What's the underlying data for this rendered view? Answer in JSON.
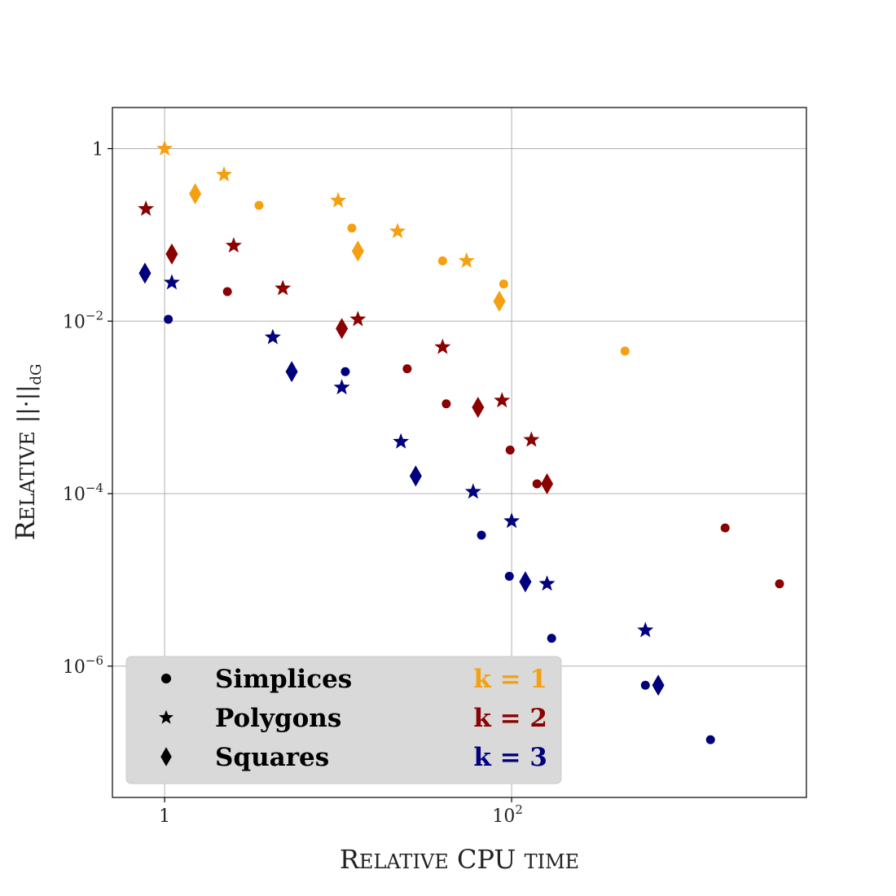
{
  "chart_data": {
    "type": "scatter",
    "title": "",
    "xlabel": "Relative CPU time",
    "ylabel": "Relative ||·||dG",
    "x_scale": "log",
    "y_scale": "log",
    "xlim": [
      0.5,
      5000
    ],
    "ylim": [
      3e-08,
      3
    ],
    "xticks": [
      {
        "value": 1,
        "label": "1",
        "sup": ""
      },
      {
        "value": 100,
        "label": "10",
        "sup": "2"
      }
    ],
    "yticks": [
      {
        "value": 1,
        "label": "1",
        "sup": ""
      },
      {
        "value": 0.01,
        "label": "10",
        "sup": "−2"
      },
      {
        "value": 0.0001,
        "label": "10",
        "sup": "−4"
      },
      {
        "value": 1e-06,
        "label": "10",
        "sup": "−6"
      }
    ],
    "grid": true,
    "legend_position": "bottom-left",
    "colors": {
      "k1": "#f5a010",
      "k2": "#8b0000",
      "k3": "#00007f"
    },
    "legend": {
      "shapes": [
        {
          "marker": "circle",
          "label": "Simplices"
        },
        {
          "marker": "star",
          "label": "Polygons"
        },
        {
          "marker": "diamond",
          "label": "Squares"
        }
      ],
      "orders": [
        {
          "label": "k = 1",
          "color": "#f5a010"
        },
        {
          "label": "k = 2",
          "color": "#8b0000"
        },
        {
          "label": "k = 3",
          "color": "#00007f"
        }
      ]
    },
    "series": [
      {
        "shape": "Simplices",
        "order": "k = 1",
        "marker": "circle",
        "color": "#f5a010",
        "x": [
          3.5,
          12,
          40,
          90,
          450
        ],
        "y": [
          0.22,
          0.12,
          0.05,
          0.027,
          0.0045
        ]
      },
      {
        "shape": "Polygons",
        "order": "k = 1",
        "marker": "star",
        "color": "#f5a010",
        "x": [
          1,
          2.2,
          10,
          22,
          55
        ],
        "y": [
          1,
          0.5,
          0.25,
          0.11,
          0.05
        ]
      },
      {
        "shape": "Squares",
        "order": "k = 1",
        "marker": "diamond",
        "color": "#f5a010",
        "x": [
          1.5,
          13,
          85
        ],
        "y": [
          0.3,
          0.065,
          0.017
        ]
      },
      {
        "shape": "Simplices",
        "order": "k = 2",
        "marker": "circle",
        "color": "#8b0000",
        "x": [
          2.3,
          25,
          42,
          98,
          140,
          1700,
          3500
        ],
        "y": [
          0.022,
          0.0028,
          0.0011,
          0.00032,
          0.00013,
          4e-05,
          9e-06
        ]
      },
      {
        "shape": "Polygons",
        "order": "k = 2",
        "marker": "star",
        "color": "#8b0000",
        "x": [
          0.78,
          2.5,
          4.8,
          13,
          40,
          88,
          130
        ],
        "y": [
          0.2,
          0.075,
          0.024,
          0.0105,
          0.005,
          0.0012,
          0.00042
        ]
      },
      {
        "shape": "Squares",
        "order": "k = 2",
        "marker": "diamond",
        "color": "#8b0000",
        "x": [
          1.1,
          10.5,
          64,
          160
        ],
        "y": [
          0.06,
          0.0082,
          0.001,
          0.00013
        ]
      },
      {
        "shape": "Simplices",
        "order": "k = 3",
        "marker": "circle",
        "color": "#00007f",
        "x": [
          1.05,
          11,
          67,
          97,
          170,
          590,
          1400
        ],
        "y": [
          0.0105,
          0.0026,
          3.3e-05,
          1.1e-05,
          2.1e-06,
          6e-07,
          1.4e-07
        ]
      },
      {
        "shape": "Polygons",
        "order": "k = 3",
        "marker": "star",
        "color": "#00007f",
        "x": [
          1.1,
          4.2,
          10.5,
          23,
          60,
          100,
          160,
          590
        ],
        "y": [
          0.028,
          0.0065,
          0.0017,
          0.0004,
          0.000105,
          4.8e-05,
          9e-06,
          2.6e-06
        ]
      },
      {
        "shape": "Squares",
        "order": "k = 3",
        "marker": "diamond",
        "color": "#00007f",
        "x": [
          0.77,
          5.4,
          28,
          120,
          700
        ],
        "y": [
          0.036,
          0.0026,
          0.00016,
          9.5e-06,
          6e-07
        ]
      }
    ]
  }
}
